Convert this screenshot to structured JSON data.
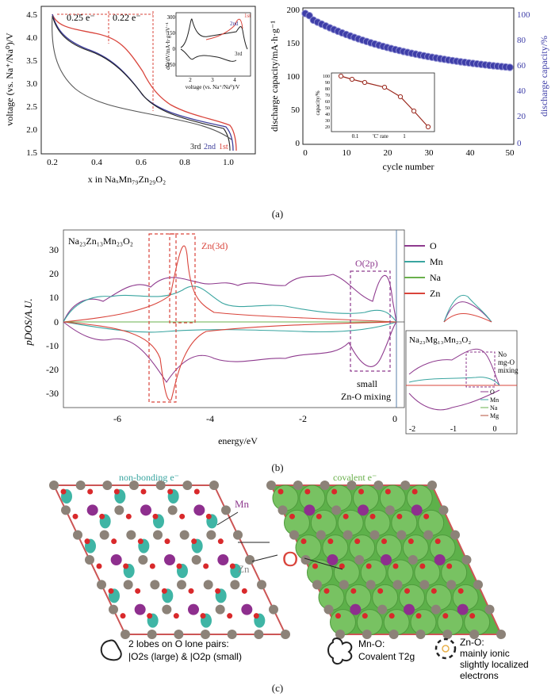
{
  "panel_a_left": {
    "ylabel": "voltage (vs. Na⁺/Na⁰)/V",
    "xlabel": "x in NaₓMn₇₉Zn₂₉O₂",
    "yticks": [
      "4.5",
      "4.0",
      "3.5",
      "3.0",
      "2.5",
      "2.0",
      "1.5"
    ],
    "xticks": [
      "0.2",
      "0.4",
      "0.6",
      "0.8",
      "1.0"
    ],
    "anno_left": "0.25 e⁻",
    "anno_right": "0.22 e⁻",
    "cycle_labels": [
      "3rd",
      "2nd",
      "1st"
    ],
    "inset": {
      "ylabel": "dQ/dV/mA·h·g⁻¹V⁻¹",
      "xlabel": "voltage (vs. Na⁺/Na⁰)/V",
      "yticks": [
        "300",
        "150",
        "0",
        "-150"
      ],
      "xticks": [
        "2",
        "3",
        "4"
      ],
      "labels": [
        "1st",
        "2nd",
        "3rd"
      ]
    }
  },
  "panel_a_right": {
    "ylabel_left": "discharge capacity/mA·h·g⁻¹",
    "ylabel_right": "discharge capacity/%",
    "xlabel": "cycle number",
    "yticks_left": [
      "200",
      "150",
      "100",
      "50",
      "0"
    ],
    "yticks_right": [
      "100",
      "80",
      "60",
      "40",
      "20",
      "0"
    ],
    "xticks": [
      "0",
      "10",
      "20",
      "30",
      "40",
      "50"
    ],
    "inset": {
      "ylabel": "capacity/%",
      "xlabel": "'C' rate",
      "yticks": [
        "100",
        "90",
        "80",
        "70",
        "60",
        "50",
        "40",
        "30",
        "20"
      ],
      "xticks": [
        "0.1",
        "1"
      ]
    }
  },
  "caption_a": "(a)",
  "panel_b": {
    "title": "Na₂₃Zn₁₃Mn₂₃O₂",
    "ylabel": "pDOS/A.U.",
    "xlabel": "energy/eV",
    "yticks": [
      "30",
      "20",
      "10",
      "0",
      "-10",
      "-20",
      "-30"
    ],
    "xticks": [
      "-6",
      "-4",
      "-2",
      "0"
    ],
    "anno_zn": "Zn(3d)",
    "anno_o": "O(2p)",
    "anno_small": "small",
    "anno_mixing": "Zn-O mixing",
    "legend": [
      {
        "name": "O",
        "color": "#8e3a8e"
      },
      {
        "name": "Mn",
        "color": "#3aa5a0"
      },
      {
        "name": "Na",
        "color": "#6ab04c"
      },
      {
        "name": "Zn",
        "color": "#d9443b"
      }
    ],
    "inset": {
      "title": "Na₂₃Mg₁₃Mn₂₃O₂",
      "anno1": "No",
      "anno2": "mg-O",
      "anno3": "mixing",
      "xticks": [
        "-2",
        "-1",
        "0"
      ],
      "legend": [
        {
          "name": "O",
          "color": "#8e3a8e"
        },
        {
          "name": "Mn",
          "color": "#3aa5a0"
        },
        {
          "name": "Na",
          "color": "#6ab04c"
        },
        {
          "name": "Mg",
          "color": "#b5513b"
        }
      ]
    }
  },
  "caption_b": "(b)",
  "panel_c": {
    "left_title": "non-bonding e⁻",
    "right_title": "covalent e⁻",
    "label_mn": "Mn",
    "label_zn": "Zn",
    "label_o": "O",
    "legend1_line1": "2 lobes on O lone pairs:",
    "legend1_line2": "|O2s (large) & |O2p (small)",
    "legend2_line1": "Mn-O:",
    "legend2_line2": "Covalent T2g",
    "legend3_line1": "Zn-O:",
    "legend3_line2": "mainly ionic",
    "legend3_line3": "slightly localized",
    "legend3_line4": "electrons"
  },
  "caption_c": "(c)",
  "colors": {
    "red": "#d9443b",
    "blue": "#3b3b9a",
    "purple": "#8e3a8e",
    "teal": "#3aa5a0",
    "green": "#6ab04c",
    "dotblue": "#3e3ea8"
  }
}
